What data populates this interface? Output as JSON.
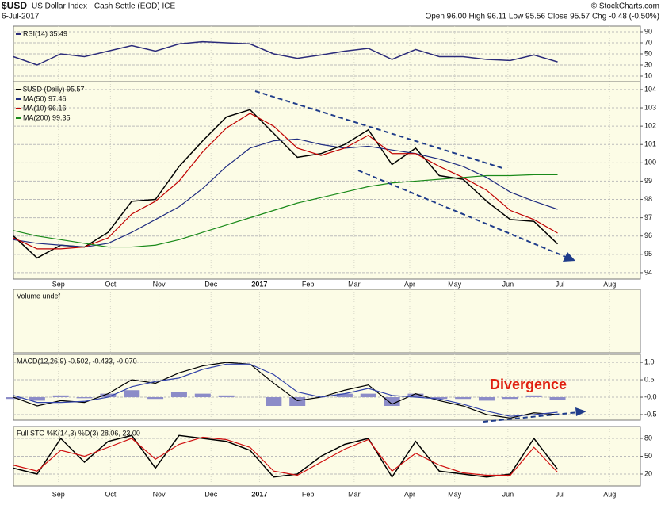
{
  "header": {
    "symbol": "$USD",
    "name": "US Dollar Index - Cash Settle (EOD) ICE",
    "date": "6-Jul-2017",
    "source": "© StockCharts.com",
    "quote": "Open 96.00 High 96.11 Low 95.56 Close 95.57 Chg -0.48 (-0.50%)"
  },
  "chart_data": [
    {
      "type": "line",
      "x": [
        0,
        2,
        4,
        6,
        8,
        10,
        12,
        14,
        16,
        18,
        20,
        22,
        24,
        26,
        28,
        30,
        32,
        34,
        36,
        38,
        40,
        42,
        44,
        46
      ],
      "xlim": [
        0,
        53
      ],
      "ylim": [
        0,
        100
      ],
      "yticks": [
        90,
        70,
        50,
        30,
        10
      ],
      "series": [
        {
          "name": "RSI(14) 35.49",
          "color": "#2b2b7a",
          "values": [
            45,
            30,
            50,
            45,
            55,
            65,
            55,
            68,
            72,
            70,
            68,
            50,
            42,
            48,
            55,
            60,
            40,
            58,
            45,
            45,
            40,
            38,
            48,
            35.49
          ]
        }
      ]
    },
    {
      "type": "line",
      "x": [
        0,
        2,
        4,
        6,
        8,
        10,
        12,
        14,
        16,
        18,
        20,
        22,
        24,
        26,
        28,
        30,
        32,
        34,
        36,
        38,
        40,
        42,
        44,
        46
      ],
      "xlim": [
        0,
        53
      ],
      "ylim": [
        93.65,
        104.43
      ],
      "yticks": [
        104,
        103,
        102,
        101,
        100,
        99,
        98,
        97,
        96,
        95,
        94
      ],
      "xticks": [
        {
          "value": 3.8,
          "label": "Sep"
        },
        {
          "value": 8.2,
          "label": "Oct"
        },
        {
          "value": 12.3,
          "label": "Nov"
        },
        {
          "value": 16.7,
          "label": "Dec"
        },
        {
          "value": 20.8,
          "label": "2017"
        },
        {
          "value": 24.9,
          "label": "Feb"
        },
        {
          "value": 28.8,
          "label": "Mar"
        },
        {
          "value": 33.5,
          "label": "Apr"
        },
        {
          "value": 37.3,
          "label": "May"
        },
        {
          "value": 41.8,
          "label": "Jun"
        },
        {
          "value": 46.2,
          "label": "Jul"
        },
        {
          "value": 50.4,
          "label": "Aug"
        }
      ],
      "series": [
        {
          "name": "$USD (Daily) 95.57",
          "color": "#000000",
          "values": [
            96.0,
            94.8,
            95.5,
            95.4,
            96.2,
            97.9,
            98.0,
            99.8,
            101.2,
            102.5,
            102.9,
            101.6,
            100.3,
            100.5,
            101.0,
            101.8,
            99.9,
            100.8,
            99.3,
            99.1,
            97.9,
            96.9,
            96.8,
            95.57
          ]
        },
        {
          "name": "MA(50) 97.46",
          "color": "#1f2c80",
          "values": [
            95.8,
            95.6,
            95.5,
            95.4,
            95.6,
            96.2,
            96.9,
            97.6,
            98.6,
            99.8,
            100.8,
            101.2,
            101.3,
            101.0,
            100.8,
            100.9,
            100.7,
            100.5,
            100.2,
            99.8,
            99.2,
            98.4,
            97.9,
            97.46
          ]
        },
        {
          "name": "MA(10) 96.16",
          "color": "#c00000",
          "values": [
            95.9,
            95.3,
            95.3,
            95.4,
            95.9,
            97.2,
            97.9,
            99.0,
            100.6,
            101.9,
            102.7,
            102.0,
            100.8,
            100.4,
            100.8,
            101.5,
            100.5,
            100.5,
            99.8,
            99.2,
            98.5,
            97.4,
            96.9,
            96.16
          ]
        },
        {
          "name": "MA(200) 99.35",
          "color": "#1a8a1a",
          "values": [
            96.3,
            96.0,
            95.8,
            95.6,
            95.4,
            95.4,
            95.5,
            95.8,
            96.2,
            96.6,
            97.0,
            97.4,
            97.8,
            98.1,
            98.4,
            98.7,
            98.9,
            99.0,
            99.1,
            99.2,
            99.3,
            99.3,
            99.35,
            99.35
          ]
        }
      ]
    },
    {
      "type": "line",
      "title": "Volume undef"
    },
    {
      "type": "line",
      "title": "MACD(12,26,9) -0.502, -0.433, -0.070",
      "annotations": [
        "Divergence"
      ],
      "x": [
        0,
        2,
        4,
        6,
        8,
        10,
        12,
        14,
        16,
        18,
        20,
        22,
        24,
        26,
        28,
        30,
        32,
        34,
        36,
        38,
        40,
        42,
        44,
        46
      ],
      "xlim": [
        0,
        53
      ],
      "ylim": [
        -0.66,
        1.23
      ],
      "yticks": [
        {
          "value": 1,
          "label": "1.0"
        },
        0.5,
        {
          "value": 0,
          "label": "-0.0"
        },
        -0.5
      ],
      "series": [
        {
          "type": "bar",
          "color": "#8c8cc8",
          "values": [
            -0.05,
            -0.1,
            0.05,
            -0.03,
            0.1,
            0.2,
            -0.05,
            0.15,
            0.1,
            0.05,
            0,
            -0.25,
            -0.25,
            0,
            0.1,
            0.1,
            -0.25,
            0.1,
            -0.05,
            -0.05,
            -0.1,
            -0.05,
            0.05,
            -0.07
          ]
        },
        {
          "color": "#000000",
          "values": [
            0.0,
            -0.25,
            -0.1,
            -0.15,
            0.1,
            0.5,
            0.4,
            0.7,
            0.9,
            1.0,
            0.95,
            0.4,
            -0.1,
            0.0,
            0.2,
            0.35,
            -0.2,
            0.1,
            -0.1,
            -0.25,
            -0.5,
            -0.6,
            -0.45,
            -0.502
          ]
        },
        {
          "color": "#3344aa",
          "values": [
            0.05,
            -0.15,
            -0.15,
            -0.12,
            0.0,
            0.3,
            0.45,
            0.55,
            0.8,
            0.95,
            0.95,
            0.65,
            0.15,
            0.0,
            0.1,
            0.25,
            0.05,
            0.0,
            -0.05,
            -0.2,
            -0.4,
            -0.55,
            -0.5,
            -0.433
          ]
        }
      ]
    },
    {
      "type": "line",
      "title": "Full STO %K(14,3) %D(3) 28.06, 23.00",
      "x": [
        0,
        2,
        4,
        6,
        8,
        10,
        12,
        14,
        16,
        18,
        20,
        22,
        24,
        26,
        28,
        30,
        32,
        34,
        36,
        38,
        40,
        42,
        44,
        46
      ],
      "xlim": [
        0,
        53
      ],
      "ylim": [
        0,
        100
      ],
      "yticks": [
        80,
        50,
        20
      ],
      "xticks": [
        {
          "value": 3.8,
          "label": "Sep"
        },
        {
          "value": 8.2,
          "label": "Oct"
        },
        {
          "value": 12.3,
          "label": "Nov"
        },
        {
          "value": 16.7,
          "label": "Dec"
        },
        {
          "value": 20.8,
          "label": "2017"
        },
        {
          "value": 24.9,
          "label": "Feb"
        },
        {
          "value": 28.8,
          "label": "Mar"
        },
        {
          "value": 33.5,
          "label": "Apr"
        },
        {
          "value": 37.3,
          "label": "May"
        },
        {
          "value": 41.8,
          "label": "Jun"
        },
        {
          "value": 46.2,
          "label": "Jul"
        },
        {
          "value": 50.4,
          "label": "Aug"
        }
      ],
      "series": [
        {
          "color": "#000000",
          "values": [
            30,
            20,
            80,
            40,
            75,
            85,
            30,
            85,
            80,
            75,
            60,
            15,
            20,
            50,
            70,
            80,
            15,
            75,
            25,
            20,
            15,
            20,
            80,
            28.06
          ]
        },
        {
          "color": "#d01010",
          "values": [
            35,
            25,
            60,
            50,
            65,
            80,
            45,
            70,
            82,
            78,
            65,
            25,
            18,
            40,
            62,
            78,
            25,
            55,
            35,
            22,
            18,
            18,
            65,
            23.0
          ]
        }
      ]
    }
  ]
}
